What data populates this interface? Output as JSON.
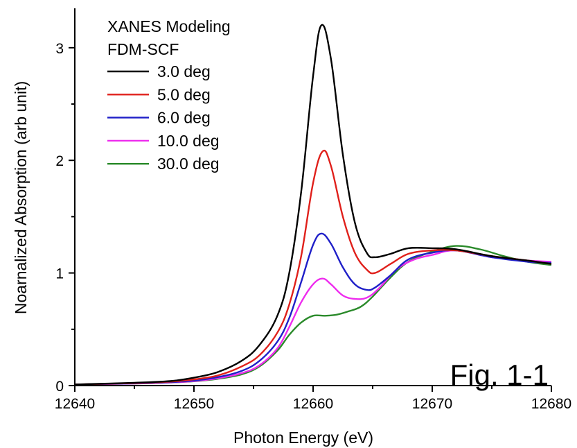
{
  "chart_data": {
    "type": "line",
    "title": "",
    "xlabel": "Photon Energy (eV)",
    "ylabel": "Noarnalized Absorption (arb unit)",
    "xlim": [
      12640,
      12680
    ],
    "ylim": [
      0,
      3.35
    ],
    "xticks": [
      12640,
      12650,
      12660,
      12670,
      12680
    ],
    "yticks": [
      0,
      1,
      2,
      3
    ],
    "grid": false,
    "legend_placement": "top-left",
    "legend_title": [
      "XANES Modeling",
      "FDM-SCF"
    ],
    "annotation": "Fig. 1-1",
    "series": [
      {
        "name": "3.0 deg",
        "color": "#000000",
        "points": [
          [
            12640,
            0.01
          ],
          [
            12645,
            0.025
          ],
          [
            12648,
            0.04
          ],
          [
            12650,
            0.07
          ],
          [
            12652,
            0.12
          ],
          [
            12654,
            0.22
          ],
          [
            12655.5,
            0.36
          ],
          [
            12657,
            0.62
          ],
          [
            12658,
            1.0
          ],
          [
            12659,
            1.72
          ],
          [
            12660,
            2.75
          ],
          [
            12660.7,
            3.2
          ],
          [
            12661.5,
            2.9
          ],
          [
            12662.5,
            2.05
          ],
          [
            12663.5,
            1.45
          ],
          [
            12664.5,
            1.18
          ],
          [
            12665.2,
            1.14
          ],
          [
            12666.5,
            1.17
          ],
          [
            12668,
            1.22
          ],
          [
            12670,
            1.22
          ],
          [
            12672,
            1.21
          ],
          [
            12675,
            1.15
          ],
          [
            12678,
            1.11
          ],
          [
            12680,
            1.08
          ]
        ]
      },
      {
        "name": "5.0 deg",
        "color": "#e0201b",
        "points": [
          [
            12640,
            0.01
          ],
          [
            12645,
            0.022
          ],
          [
            12648,
            0.035
          ],
          [
            12650,
            0.055
          ],
          [
            12652,
            0.09
          ],
          [
            12654,
            0.17
          ],
          [
            12655.5,
            0.27
          ],
          [
            12657,
            0.47
          ],
          [
            12658,
            0.72
          ],
          [
            12659,
            1.15
          ],
          [
            12660,
            1.8
          ],
          [
            12660.8,
            2.08
          ],
          [
            12661.5,
            1.95
          ],
          [
            12662.5,
            1.5
          ],
          [
            12663.5,
            1.18
          ],
          [
            12664.5,
            1.03
          ],
          [
            12665.2,
            1.0
          ],
          [
            12666.5,
            1.08
          ],
          [
            12668,
            1.17
          ],
          [
            12670,
            1.2
          ],
          [
            12672,
            1.2
          ],
          [
            12675,
            1.15
          ],
          [
            12678,
            1.11
          ],
          [
            12680,
            1.08
          ]
        ]
      },
      {
        "name": "6.0 deg",
        "color": "#1f1fc8",
        "points": [
          [
            12640,
            0.01
          ],
          [
            12645,
            0.02
          ],
          [
            12648,
            0.03
          ],
          [
            12650,
            0.045
          ],
          [
            12652,
            0.075
          ],
          [
            12654,
            0.13
          ],
          [
            12655.5,
            0.22
          ],
          [
            12657,
            0.39
          ],
          [
            12658,
            0.6
          ],
          [
            12659,
            0.92
          ],
          [
            12660,
            1.25
          ],
          [
            12660.7,
            1.35
          ],
          [
            12661.5,
            1.26
          ],
          [
            12662.5,
            1.05
          ],
          [
            12663.5,
            0.9
          ],
          [
            12664.5,
            0.85
          ],
          [
            12665.2,
            0.87
          ],
          [
            12666.5,
            0.98
          ],
          [
            12668,
            1.12
          ],
          [
            12670,
            1.18
          ],
          [
            12672,
            1.2
          ],
          [
            12675,
            1.14
          ],
          [
            12678,
            1.1
          ],
          [
            12680,
            1.09
          ]
        ]
      },
      {
        "name": "10.0 deg",
        "color": "#ee2cee",
        "points": [
          [
            12640,
            0.01
          ],
          [
            12645,
            0.018
          ],
          [
            12648,
            0.028
          ],
          [
            12650,
            0.04
          ],
          [
            12652,
            0.065
          ],
          [
            12654,
            0.11
          ],
          [
            12655.5,
            0.18
          ],
          [
            12657,
            0.33
          ],
          [
            12658,
            0.52
          ],
          [
            12659,
            0.74
          ],
          [
            12660,
            0.9
          ],
          [
            12660.8,
            0.95
          ],
          [
            12661.5,
            0.9
          ],
          [
            12662.5,
            0.8
          ],
          [
            12663.5,
            0.77
          ],
          [
            12664.5,
            0.78
          ],
          [
            12665.5,
            0.86
          ],
          [
            12667,
            1.03
          ],
          [
            12668.5,
            1.12
          ],
          [
            12670,
            1.16
          ],
          [
            12672,
            1.2
          ],
          [
            12675,
            1.14
          ],
          [
            12678,
            1.11
          ],
          [
            12680,
            1.1
          ]
        ]
      },
      {
        "name": "30.0 deg",
        "color": "#2a8a2a",
        "points": [
          [
            12640,
            0.01
          ],
          [
            12645,
            0.018
          ],
          [
            12648,
            0.027
          ],
          [
            12650,
            0.038
          ],
          [
            12652,
            0.06
          ],
          [
            12654,
            0.1
          ],
          [
            12655.5,
            0.17
          ],
          [
            12657,
            0.31
          ],
          [
            12658,
            0.45
          ],
          [
            12659,
            0.56
          ],
          [
            12660,
            0.62
          ],
          [
            12661,
            0.62
          ],
          [
            12662,
            0.63
          ],
          [
            12663,
            0.66
          ],
          [
            12664,
            0.7
          ],
          [
            12665,
            0.79
          ],
          [
            12666.5,
            0.96
          ],
          [
            12668,
            1.1
          ],
          [
            12670,
            1.19
          ],
          [
            12672,
            1.24
          ],
          [
            12674,
            1.21
          ],
          [
            12676,
            1.15
          ],
          [
            12678,
            1.1
          ],
          [
            12680,
            1.07
          ]
        ]
      }
    ]
  }
}
